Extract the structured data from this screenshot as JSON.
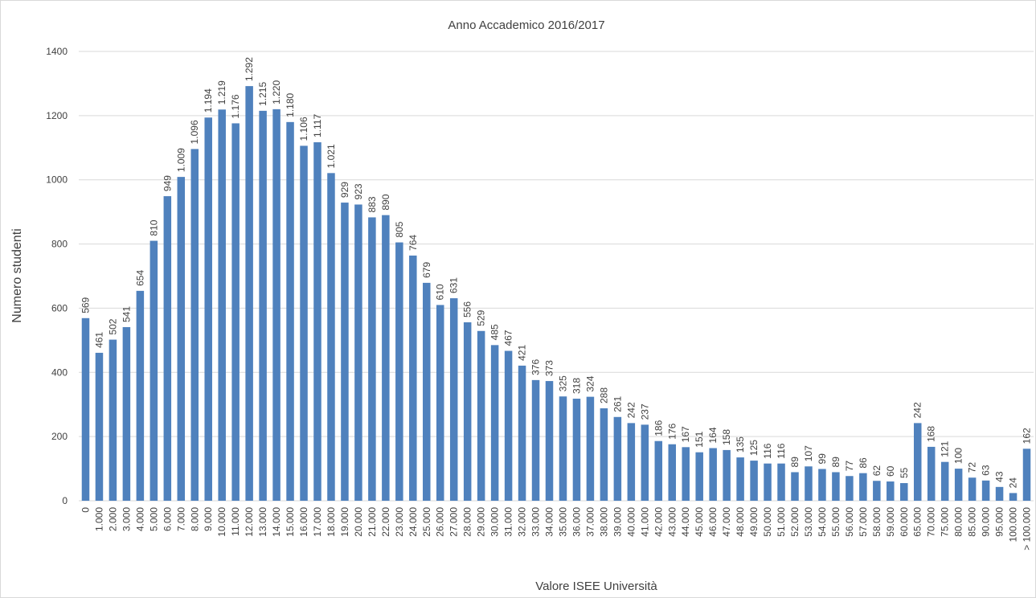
{
  "chart_data": {
    "type": "bar",
    "title": "Anno Accademico 2016/2017",
    "x_label": "Valore ISEE Università",
    "y_label": "Numero  studenti",
    "categories": [
      "0",
      "1.000",
      "2.000",
      "3.000",
      "4.000",
      "5.000",
      "6.000",
      "7.000",
      "8.000",
      "9.000",
      "10.000",
      "11.000",
      "12.000",
      "13.000",
      "14.000",
      "15.000",
      "16.000",
      "17.000",
      "18.000",
      "19.000",
      "20.000",
      "21.000",
      "22.000",
      "23.000",
      "24.000",
      "25.000",
      "26.000",
      "27.000",
      "28.000",
      "29.000",
      "30.000",
      "31.000",
      "32.000",
      "33.000",
      "34.000",
      "35.000",
      "36.000",
      "37.000",
      "38.000",
      "39.000",
      "40.000",
      "41.000",
      "42.000",
      "43.000",
      "44.000",
      "45.000",
      "46.000",
      "47.000",
      "48.000",
      "49.000",
      "50.000",
      "51.000",
      "52.000",
      "53.000",
      "54.000",
      "55.000",
      "56.000",
      "57.000",
      "58.000",
      "59.000",
      "60.000",
      "65.000",
      "70.000",
      "75.000",
      "80.000",
      "85.000",
      "90.000",
      "95.000",
      "100.000",
      "> 100.000"
    ],
    "values": [
      569,
      461,
      502,
      541,
      654,
      810,
      949,
      1009,
      1096,
      1194,
      1219,
      1176,
      1292,
      1215,
      1220,
      1180,
      1106,
      1117,
      1021,
      929,
      923,
      883,
      890,
      805,
      764,
      679,
      610,
      631,
      556,
      529,
      485,
      467,
      421,
      376,
      373,
      325,
      318,
      324,
      288,
      261,
      242,
      237,
      186,
      176,
      167,
      151,
      164,
      158,
      135,
      125,
      116,
      116,
      89,
      107,
      99,
      89,
      77,
      86,
      62,
      60,
      55,
      242,
      168,
      121,
      100,
      72,
      63,
      43,
      24,
      162
    ],
    "value_labels": [
      "569",
      "461",
      "502",
      "541",
      "654",
      "810",
      "949",
      "1.009",
      "1.096",
      "1.194",
      "1.219",
      "1.176",
      "1.292",
      "1.215",
      "1.220",
      "1.180",
      "1.106",
      "1.117",
      "1.021",
      "929",
      "923",
      "883",
      "890",
      "805",
      "764",
      "679",
      "610",
      "631",
      "556",
      "529",
      "485",
      "467",
      "421",
      "376",
      "373",
      "325",
      "318",
      "324",
      "288",
      "261",
      "242",
      "237",
      "186",
      "176",
      "167",
      "151",
      "164",
      "158",
      "135",
      "125",
      "116",
      "116",
      "89",
      "107",
      "99",
      "89",
      "77",
      "86",
      "62",
      "60",
      "55",
      "242",
      "168",
      "121",
      "100",
      "72",
      "63",
      "43",
      "24",
      "162"
    ],
    "color": "#4f81bd",
    "ylim": [
      0,
      1400
    ],
    "yticks": [
      0,
      200,
      400,
      600,
      800,
      1000,
      1200,
      1400
    ],
    "grid": true
  }
}
